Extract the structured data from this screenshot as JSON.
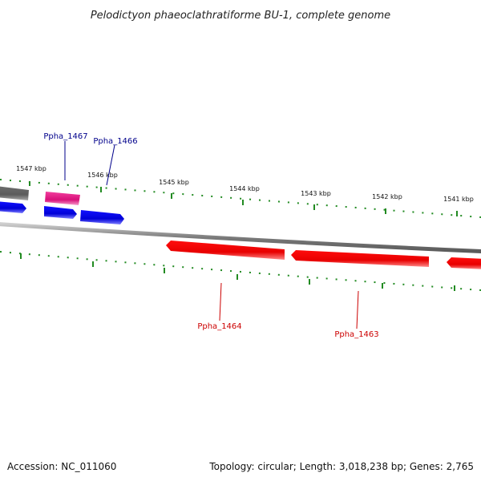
{
  "title": "Pelodictyon phaeoclathratiforme BU-1, complete genome",
  "footer": {
    "accession": "Accession: NC_011060",
    "summary": "Topology: circular; Length: 3,018,238 bp; Genes: 2,765"
  },
  "colors": {
    "backbone": "#888888",
    "tick": "#228B22",
    "forward_gene": "#0000ee",
    "forward_label": "#00008b",
    "reverse_gene": "#ee0000",
    "reverse_label": "#cc0000",
    "rna_gene": "#ee1a8c",
    "other_gene": "#707070"
  },
  "scale": {
    "ticks": [
      {
        "kbp": 1547,
        "label": "1547 kbp"
      },
      {
        "kbp": 1546,
        "label": "1546 kbp"
      },
      {
        "kbp": 1545,
        "label": "1545 kbp"
      },
      {
        "kbp": 1544,
        "label": "1544 kbp"
      },
      {
        "kbp": 1543,
        "label": "1543 kbp"
      },
      {
        "kbp": 1542,
        "label": "1542 kbp"
      },
      {
        "kbp": 1541,
        "label": "1541 kbp"
      }
    ]
  },
  "genes": [
    {
      "id": "gene-gray-top",
      "strand": "top",
      "type": "other"
    },
    {
      "id": "Ppha_1467",
      "strand": "top",
      "type": "rna",
      "label": "Ppha_1467"
    },
    {
      "id": "gene-blue-a",
      "strand": "forward",
      "type": "forward"
    },
    {
      "id": "gene-blue-b",
      "strand": "forward",
      "type": "forward"
    },
    {
      "id": "Ppha_1466",
      "strand": "forward",
      "type": "forward",
      "label": "Ppha_1466"
    },
    {
      "id": "Ppha_1464",
      "strand": "reverse",
      "type": "reverse",
      "label": "Ppha_1464"
    },
    {
      "id": "Ppha_1463",
      "strand": "reverse",
      "type": "reverse",
      "label": "Ppha_1463"
    },
    {
      "id": "gene-red-c",
      "strand": "reverse",
      "type": "reverse"
    }
  ]
}
